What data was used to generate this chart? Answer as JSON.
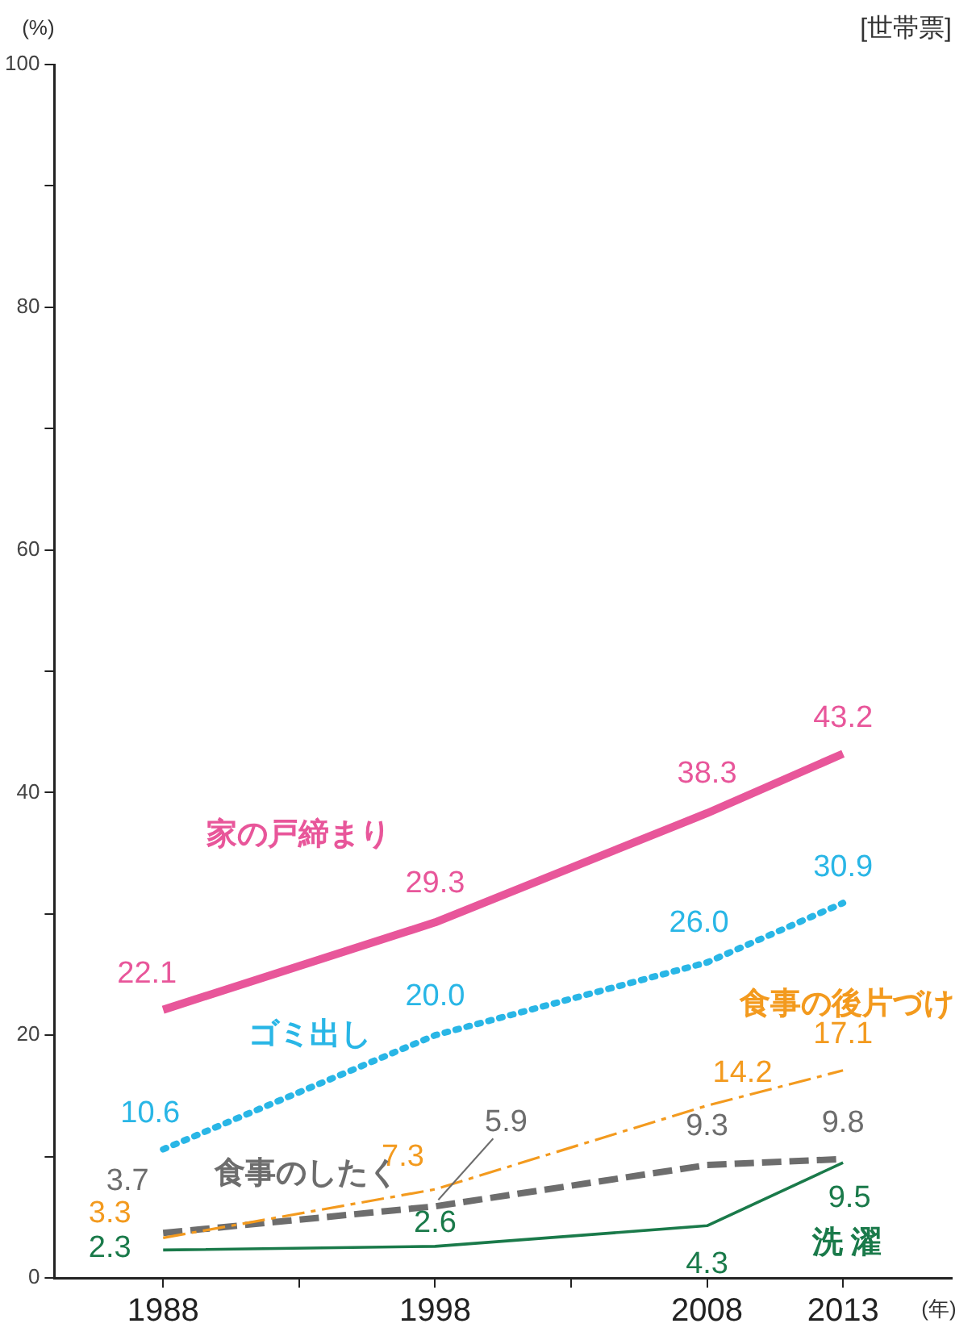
{
  "chart_data": {
    "type": "line",
    "xlabel": "(年)",
    "ylabel": "(%)",
    "annotations": [
      "[世帯票]"
    ],
    "x": [
      1988,
      1998,
      2008,
      2013
    ],
    "xlim": [
      1984,
      2017
    ],
    "xticks": [
      1988,
      {
        "value": 1993,
        "label": null
      },
      1998,
      {
        "value": 2003,
        "label": null
      },
      2008,
      2013
    ],
    "ylim": [
      0,
      100
    ],
    "yticks": [
      0,
      {
        "value": 10,
        "label": null
      },
      20,
      {
        "value": 30,
        "label": null
      },
      40,
      {
        "value": 50,
        "label": null
      },
      60,
      {
        "value": 70,
        "label": null
      },
      80,
      {
        "value": 90,
        "label": null
      },
      100
    ],
    "grid": false,
    "legend": false,
    "marker": "none",
    "series": [
      {
        "name": "家の戸締まり",
        "color": "#e8569a",
        "values": [
          22.1,
          29.3,
          38.3,
          43.2
        ],
        "value_labels": [
          "22.1",
          "29.3",
          "38.3",
          "43.2"
        ],
        "line_style": "solid"
      },
      {
        "name": "ゴミ出し",
        "color": "#29b6e6",
        "values": [
          10.6,
          20.0,
          26.0,
          30.9
        ],
        "value_labels": [
          "10.6",
          "20.0",
          "26.0",
          "30.9"
        ],
        "line_style": "dotted"
      },
      {
        "name": "食事の後片づけ",
        "color": "#f39a1e",
        "values": [
          3.3,
          7.3,
          14.2,
          17.1
        ],
        "value_labels": [
          "3.3",
          "7.3",
          "14.2",
          "17.1"
        ],
        "line_style": "dashed"
      },
      {
        "name": "食事のしたく",
        "color": "#6d6d6d",
        "values": [
          3.7,
          5.9,
          9.3,
          9.8
        ],
        "value_labels": [
          "3.7",
          "5.9",
          "9.3",
          "9.8"
        ],
        "line_style": "dashed"
      },
      {
        "name": "洗 濯",
        "color": "#1a7a4a",
        "values": [
          2.3,
          2.6,
          4.3,
          9.5
        ],
        "value_labels": [
          "2.3",
          "2.6",
          "4.3",
          "9.5"
        ],
        "line_style": "solid"
      }
    ]
  }
}
